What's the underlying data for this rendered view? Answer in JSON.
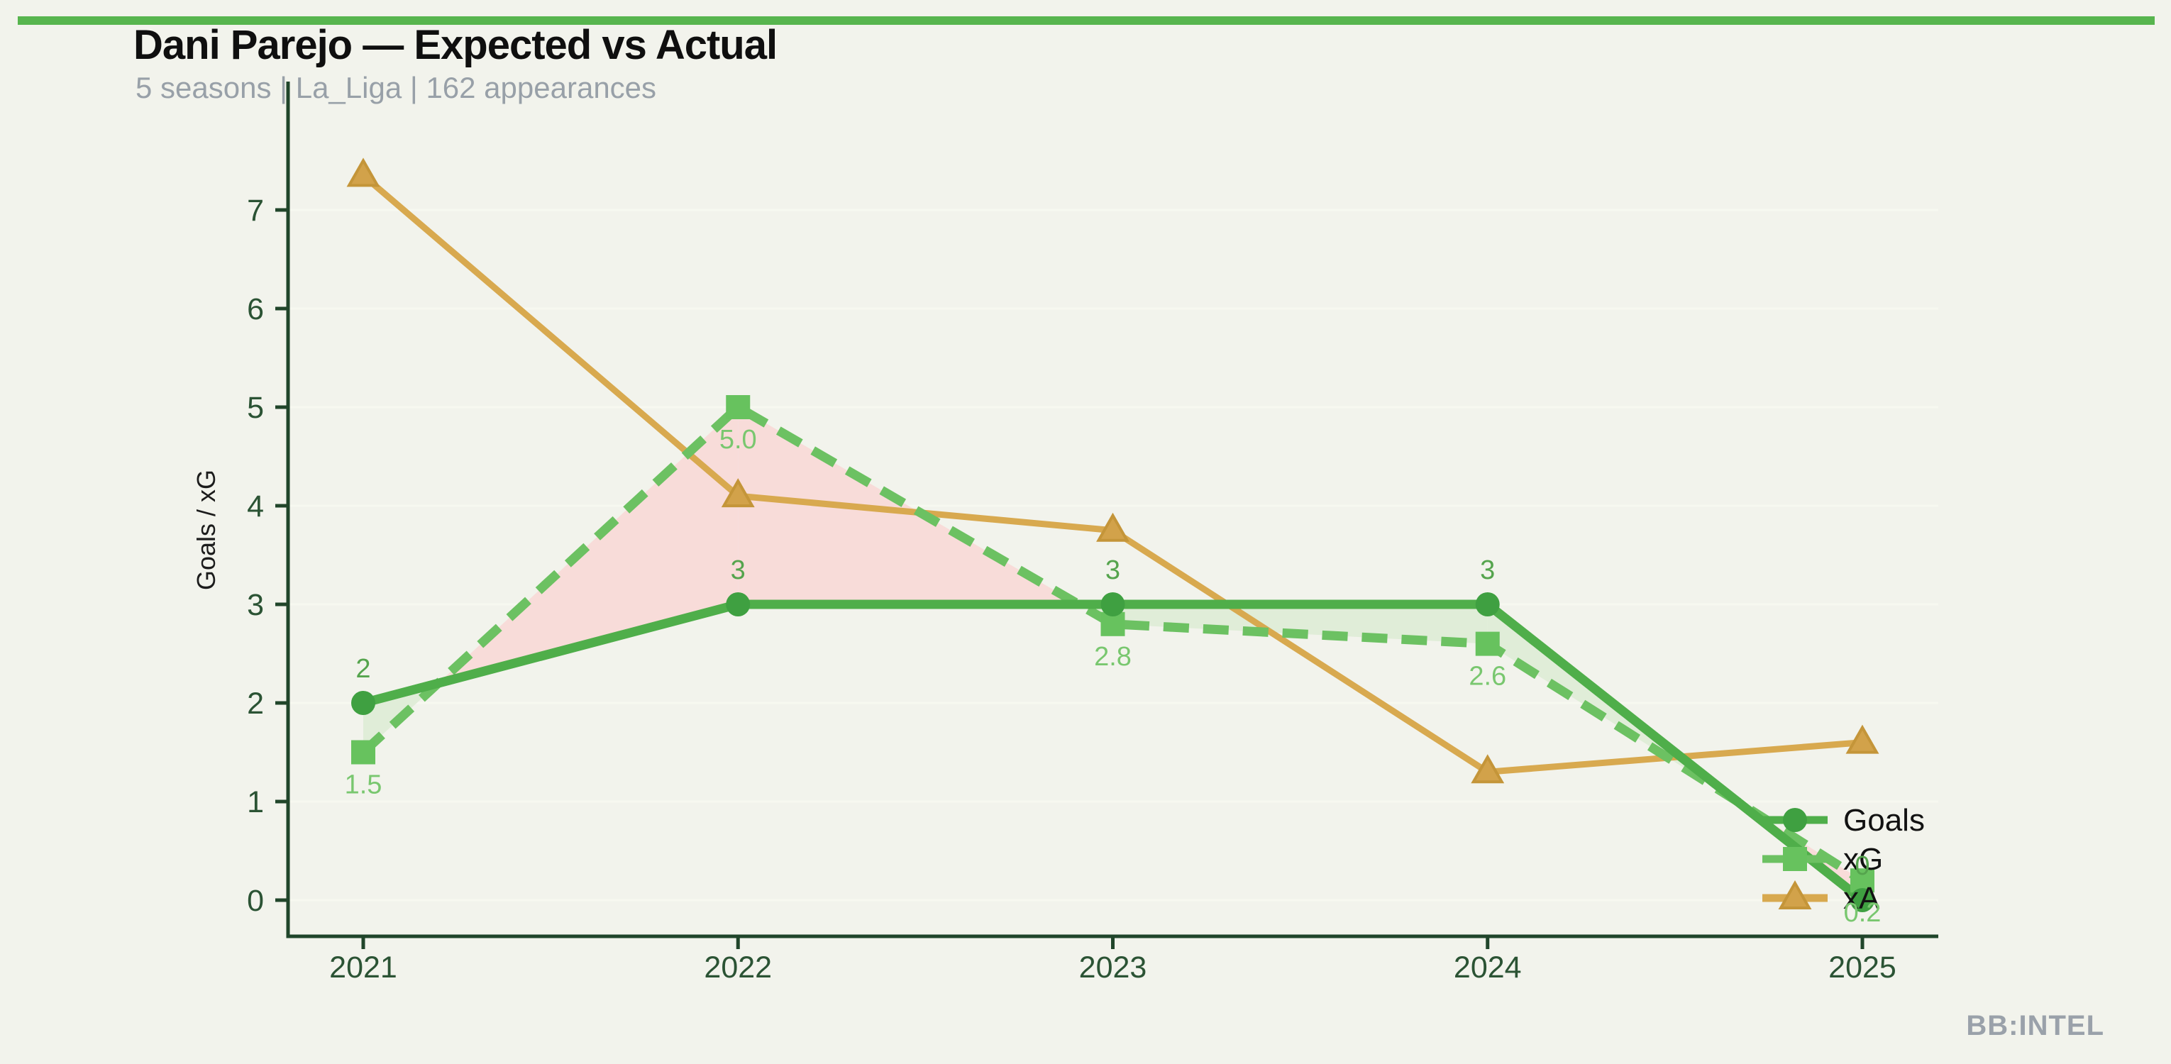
{
  "header": {
    "title": "Dani Parejo — Expected vs Actual",
    "subtitle": "5 seasons | La_Liga | 162 appearances"
  },
  "footer": {
    "watermark": "BB:INTEL"
  },
  "theme": {
    "background": "#f2f3ec",
    "accent_bar": "#57b54e",
    "axis": "#20452a",
    "tick_label": "#2b5334",
    "gridline": "#f7f8f0",
    "axis_label": "#1c1c1c",
    "legend_text": "#121212",
    "title": "#0f0f0f",
    "subtitle": "#98a0a8",
    "watermark": "#9aa1aa",
    "fill_goals_above_xg": "#e0edd8",
    "fill_xg_above_goals": "#f8dcd9"
  },
  "chart_data": {
    "type": "line",
    "title": "Dani Parejo — Expected vs Actual",
    "subtitle": "5 seasons | La_Liga | 162 appearances",
    "xlabel": "",
    "ylabel": "Goals / xG",
    "categories": [
      "2021",
      "2022",
      "2023",
      "2024",
      "2025"
    ],
    "yticks": [
      0,
      1,
      2,
      3,
      4,
      5,
      6,
      7
    ],
    "ylim": [
      0,
      7.6
    ],
    "grid": "faint-horizontal",
    "legend_position": "inside-lower-right",
    "legend_entries": [
      "Goals",
      "xG",
      "xA"
    ],
    "series": [
      {
        "name": "Goals",
        "values": [
          2,
          3,
          3,
          3,
          0
        ],
        "labels": [
          "2",
          "3",
          "3",
          "3",
          "0"
        ],
        "label_position": "above",
        "label_color": "#55a44d",
        "color": "#4fae4a",
        "marker_color": "#3fa041",
        "style": "solid",
        "marker": "circle"
      },
      {
        "name": "xG",
        "values": [
          1.5,
          5.0,
          2.8,
          2.6,
          0.2
        ],
        "labels": [
          "1.5",
          "5.0",
          "2.8",
          "2.6",
          "0.2"
        ],
        "label_position": "below",
        "label_color": "#79c76f",
        "color": "#6cc162",
        "marker_color": "#67c25e",
        "style": "dashed",
        "marker": "square"
      },
      {
        "name": "xA",
        "values": [
          7.35,
          4.1,
          3.75,
          1.3,
          1.6
        ],
        "labels": [],
        "label_position": null,
        "label_color": "#d8a94f",
        "color": "#d8a94f",
        "marker_color": "#d2a24a",
        "marker_edge": "#c49539",
        "style": "solid",
        "marker": "triangle"
      }
    ],
    "fills_between": [
      "Goals",
      "xG"
    ]
  }
}
